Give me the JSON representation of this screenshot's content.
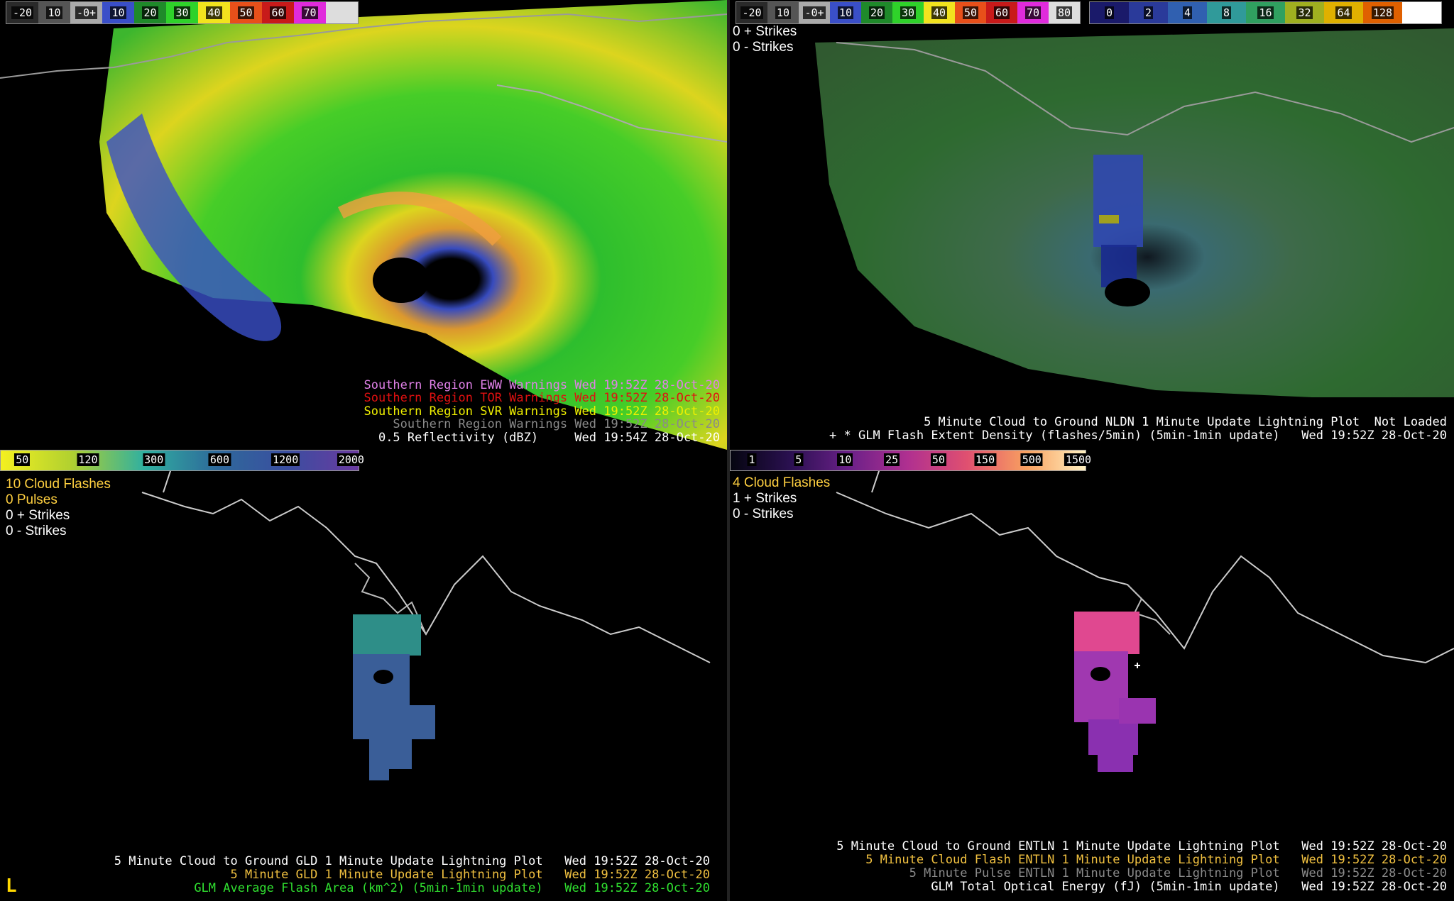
{
  "panels": {
    "top_left": {
      "colorbar": [
        {
          "label": "-20",
          "color": "#2a2a2a"
        },
        {
          "label": "10",
          "color": "#555555"
        },
        {
          "label": "-0+",
          "color": "#aaaaaa"
        },
        {
          "label": "10",
          "color": "#3a4fc8"
        },
        {
          "label": "20",
          "color": "#1f8a2a"
        },
        {
          "label": "30",
          "color": "#2fd22a"
        },
        {
          "label": "40",
          "color": "#f2e31e"
        },
        {
          "label": "50",
          "color": "#e8501a"
        },
        {
          "label": "60",
          "color": "#c81a1a"
        },
        {
          "label": "70",
          "color": "#e02bdc"
        },
        {
          "label": "",
          "color": "#dddddd"
        }
      ],
      "status_lines": [
        {
          "text": "Southern Region EWW Warnings Wed 19:52Z 28-Oct-20",
          "color": "#e080e8"
        },
        {
          "text": "Southern Region TOR Warnings Wed 19:52Z 28-Oct-20",
          "color": "#e01010"
        },
        {
          "text": "Southern Region SVR Warnings Wed 19:52Z 28-Oct-20",
          "color": "#f0f000"
        },
        {
          "text": "Southern Region Warnings Wed 19:52Z 28-Oct-20",
          "color": "#8a8a8a"
        },
        {
          "text": "0.5 Reflectivity (dBZ)     Wed 19:54Z 28-Oct-20",
          "color": "#ffffff"
        }
      ]
    },
    "top_right": {
      "colorbar_radar": [
        {
          "label": "-20",
          "color": "#2a2a2a"
        },
        {
          "label": "10",
          "color": "#555555"
        },
        {
          "label": "-0+",
          "color": "#aaaaaa"
        },
        {
          "label": "10",
          "color": "#3a4fc8"
        },
        {
          "label": "20",
          "color": "#1f8a2a"
        },
        {
          "label": "30",
          "color": "#2fd22a"
        },
        {
          "label": "40",
          "color": "#f2e31e"
        },
        {
          "label": "50",
          "color": "#e8501a"
        },
        {
          "label": "60",
          "color": "#c81a1a"
        },
        {
          "label": "70",
          "color": "#e02bdc"
        },
        {
          "label": "80",
          "color": "#dddddd"
        }
      ],
      "colorbar_density": [
        {
          "label": "0",
          "color": "#1a1a6a"
        },
        {
          "label": "2",
          "color": "#2a3a9a"
        },
        {
          "label": "4",
          "color": "#3060b0"
        },
        {
          "label": "8",
          "color": "#309a9a"
        },
        {
          "label": "16",
          "color": "#30a060"
        },
        {
          "label": "32",
          "color": "#a0b020"
        },
        {
          "label": "64",
          "color": "#e0b000"
        },
        {
          "label": "128",
          "color": "#e06000"
        },
        {
          "label": "",
          "color": "#ffffff"
        }
      ],
      "legend": [
        {
          "text": "0 + Strikes",
          "color": "#ffffff"
        },
        {
          "text": "0 - Strikes",
          "color": "#ffffff"
        }
      ],
      "status_lines": [
        {
          "text": "5 Minute Cloud to Ground NLDN 1 Minute Update Lightning Plot  Not Loaded",
          "color": "#ffffff"
        },
        {
          "text": "+ * GLM Flash Extent Density (flashes/5min) (5min-1min update)   Wed 19:52Z 28-Oct-20",
          "color": "#ffffff"
        }
      ]
    },
    "bottom_left": {
      "colorbar_ticks": [
        "50",
        "120",
        "300",
        "600",
        "1200",
        "2000"
      ],
      "legend": [
        {
          "text": "10 Cloud Flashes",
          "color": "#ffd040"
        },
        {
          "text": "0 Pulses",
          "color": "#ffd040"
        },
        {
          "text": "0 + Strikes",
          "color": "#ffffff"
        },
        {
          "text": "0 - Strikes",
          "color": "#ffffff"
        }
      ],
      "status_lines": [
        {
          "text": "5 Minute Cloud to Ground GLD 1 Minute Update Lightning Plot   Wed 19:52Z 28-Oct-20",
          "color": "#ffffff"
        },
        {
          "text": "5 Minute GLD 1 Minute Update Lightning Plot   Wed 19:52Z 28-Oct-20",
          "color": "#f0c040"
        },
        {
          "text": "GLM Average Flash Area (km^2) (5min-1min update)   Wed 19:52Z 28-Oct-20",
          "color": "#30e030"
        }
      ],
      "corner_label": "L"
    },
    "bottom_right": {
      "colorbar_ticks": [
        "1",
        "5",
        "10",
        "25",
        "50",
        "150",
        "500",
        "1500"
      ],
      "legend": [
        {
          "text": "4 Cloud Flashes",
          "color": "#ffd040"
        },
        {
          "text": "1 + Strikes",
          "color": "#ffffff"
        },
        {
          "text": "0 - Strikes",
          "color": "#ffffff"
        }
      ],
      "status_lines": [
        {
          "text": "5 Minute Cloud to Ground ENTLN 1 Minute Update Lightning Plot   Wed 19:52Z 28-Oct-20",
          "color": "#ffffff"
        },
        {
          "text": "5 Minute Cloud Flash ENTLN 1 Minute Update Lightning Plot   Wed 19:52Z 28-Oct-20",
          "color": "#f0c040"
        },
        {
          "text": "5 Minute Pulse ENTLN 1 Minute Update Lightning Plot   Wed 19:52Z 28-Oct-20",
          "color": "#8a8a8a"
        },
        {
          "text": "GLM Total Optical Energy (fJ) (5min-1min update)   Wed 19:52Z 28-Oct-20",
          "color": "#ffffff"
        }
      ]
    }
  }
}
